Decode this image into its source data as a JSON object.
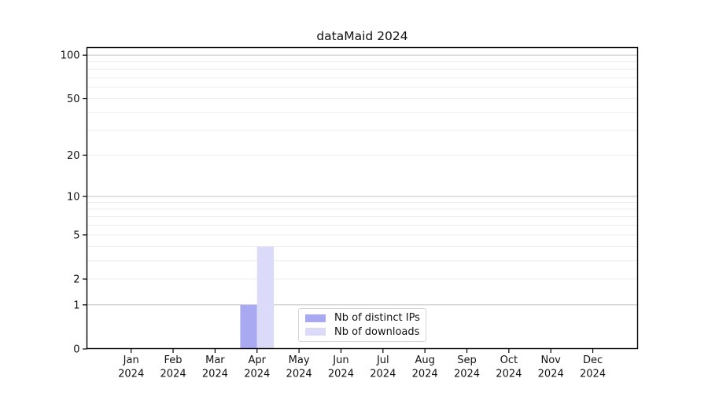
{
  "chart_data": {
    "type": "bar",
    "title": "dataMaid 2024",
    "x_categories": [
      "Jan",
      "Feb",
      "Mar",
      "Apr",
      "May",
      "Jun",
      "Jul",
      "Aug",
      "Sep",
      "Oct",
      "Nov",
      "Dec"
    ],
    "x_year_label": "2024",
    "series": [
      {
        "name": "Nb of distinct IPs",
        "color": "#a9a9f2",
        "values": [
          0,
          0,
          0,
          1,
          0,
          0,
          0,
          0,
          0,
          0,
          0,
          0
        ]
      },
      {
        "name": "Nb of downloads",
        "color": "#dbdbf9",
        "values": [
          0,
          0,
          0,
          4,
          0,
          0,
          0,
          0,
          0,
          0,
          0,
          0
        ]
      }
    ],
    "y_axis": {
      "scale": "log1p",
      "tick_values": [
        0,
        1,
        2,
        5,
        10,
        20,
        50,
        100
      ],
      "major_gridlines": [
        1,
        10,
        100
      ],
      "minor_gridlines": [
        2,
        3,
        4,
        5,
        6,
        7,
        8,
        9,
        20,
        30,
        40,
        50,
        60,
        70,
        80,
        90
      ],
      "ylim": [
        0,
        112
      ]
    },
    "legend": {
      "position": "inside-bottom-center",
      "items": [
        "Nb of distinct IPs",
        "Nb of downloads"
      ]
    },
    "colors": {
      "axis": "#000000",
      "major_grid": "#c9c9c9",
      "minor_grid": "#ededed",
      "legend_border": "#d5d5d5",
      "background": "#ffffff"
    }
  }
}
